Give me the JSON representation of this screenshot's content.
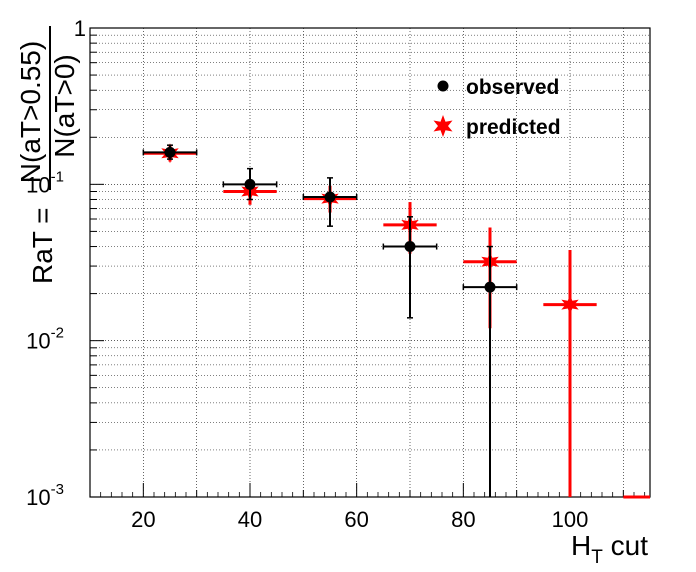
{
  "chart_data": {
    "type": "scatter",
    "title": "",
    "xlabel": {
      "main": "H",
      "sub": "T",
      "suffix": " cut"
    },
    "ylabel": {
      "prefix": "RaT = ",
      "numerator": "N(aT>0.55)",
      "denominator": "N(aT>0)"
    },
    "xlim": [
      10,
      115
    ],
    "ylim": [
      0.001,
      1
    ],
    "yscale": "log",
    "grid": true,
    "legend_position": "top-right",
    "x_ticks": [
      "20",
      "40",
      "60",
      "80",
      "100"
    ],
    "y_ticks": [
      {
        "base": "10",
        "exp": "-3"
      },
      {
        "base": "10",
        "exp": "-2"
      },
      {
        "base": "10",
        "exp": "-1"
      },
      {
        "base": "1",
        "exp": ""
      }
    ],
    "series": [
      {
        "name": "observed",
        "color": "#000000",
        "marker": "circle",
        "points": [
          {
            "x": 25,
            "y": 0.16,
            "xerr": 5,
            "ylo": 0.145,
            "yhi": 0.178
          },
          {
            "x": 40,
            "y": 0.1,
            "xerr": 5,
            "ylo": 0.08,
            "yhi": 0.126
          },
          {
            "x": 55,
            "y": 0.083,
            "xerr": 5,
            "ylo": 0.054,
            "yhi": 0.11
          },
          {
            "x": 70,
            "y": 0.04,
            "xerr": 5,
            "ylo": 0.014,
            "yhi": 0.062
          },
          {
            "x": 85,
            "y": 0.022,
            "xerr": 5,
            "ylo": 0.001,
            "yhi": 0.04
          }
        ]
      },
      {
        "name": "predicted",
        "color": "#ff0000",
        "marker": "star",
        "points": [
          {
            "x": 25,
            "y": 0.158,
            "xerr": 5,
            "ylo": 0.14,
            "yhi": 0.18
          },
          {
            "x": 40,
            "y": 0.09,
            "xerr": 5,
            "ylo": 0.074,
            "yhi": 0.107
          },
          {
            "x": 55,
            "y": 0.081,
            "xerr": 5,
            "ylo": 0.066,
            "yhi": 0.098
          },
          {
            "x": 70,
            "y": 0.055,
            "xerr": 5,
            "ylo": 0.036,
            "yhi": 0.077
          },
          {
            "x": 85,
            "y": 0.032,
            "xerr": 5,
            "ylo": 0.012,
            "yhi": 0.053
          },
          {
            "x": 100,
            "y": 0.017,
            "xerr": 5,
            "ylo": 0.001,
            "yhi": 0.038
          },
          {
            "x": 115,
            "y": 0.001,
            "xerr": 5,
            "ylo": 0.001,
            "yhi": 0.001
          }
        ]
      }
    ]
  }
}
